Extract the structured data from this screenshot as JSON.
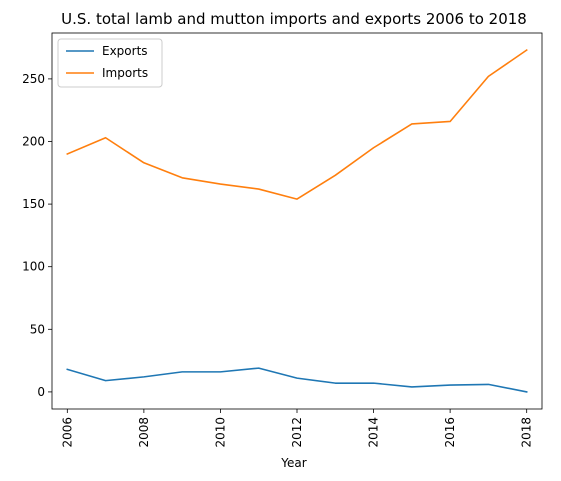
{
  "chart_data": {
    "type": "line",
    "title": "U.S. total lamb and mutton imports and exports 2006 to 2018",
    "xlabel": "Year",
    "ylabel": "",
    "x": [
      2006,
      2007,
      2008,
      2009,
      2010,
      2011,
      2012,
      2013,
      2014,
      2015,
      2016,
      2017,
      2018
    ],
    "xlim": [
      2005.6,
      2018.4
    ],
    "ylim": [
      -13.65,
      286.65
    ],
    "x_ticks": [
      "2006",
      "2008",
      "2010",
      "2012",
      "2014",
      "2016",
      "2018"
    ],
    "y_ticks": [
      "0",
      "50",
      "100",
      "150",
      "200",
      "250"
    ],
    "grid": false,
    "legend_position": "top-left",
    "series": [
      {
        "name": "Exports",
        "color": "#1f77b4",
        "values": [
          18,
          9,
          12,
          16,
          16,
          19,
          11,
          7,
          7,
          4,
          5.5,
          6,
          0
        ]
      },
      {
        "name": "Imports",
        "color": "#ff7f0e",
        "values": [
          190,
          203,
          183,
          171,
          166,
          162,
          154,
          173,
          195,
          214,
          216,
          252,
          273
        ]
      }
    ]
  }
}
